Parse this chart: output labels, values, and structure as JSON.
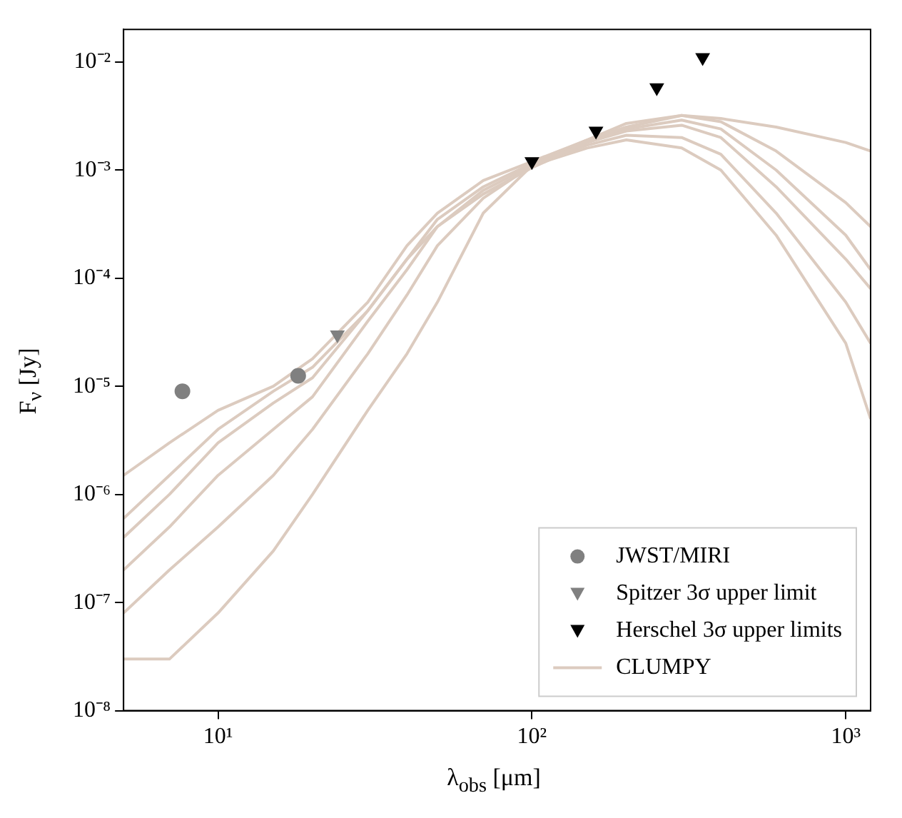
{
  "chart_data": {
    "type": "line",
    "xlabel": "λ$_{obs}$ [μm]",
    "ylabel": "F$_{ν}$ [Jy]",
    "log": "xy",
    "grid": false,
    "legend": "bottom right",
    "xlim": [
      5,
      1200
    ],
    "ylim": [
      1e-08,
      0.02
    ],
    "xticks": [
      {
        "value": 10,
        "label": "10¹"
      },
      {
        "value": 100,
        "label": "10²"
      },
      {
        "value": 1000,
        "label": "10³"
      }
    ],
    "yticks": [
      {
        "value": 1e-08,
        "label": "10⁻⁸"
      },
      {
        "value": 1e-07,
        "label": "10⁻⁷"
      },
      {
        "value": 1e-06,
        "label": "10⁻⁶"
      },
      {
        "value": 1e-05,
        "label": "10⁻⁵"
      },
      {
        "value": 0.0001,
        "label": "10⁻⁴"
      },
      {
        "value": 0.001,
        "label": "10⁻³"
      },
      {
        "value": 0.01,
        "label": "10⁻²"
      }
    ],
    "x": [
      5,
      7,
      10,
      15,
      20,
      30,
      40,
      50,
      70,
      100,
      150,
      200,
      300,
      400,
      600,
      1000,
      1200
    ],
    "series": [
      {
        "name": "JWST/MIRI",
        "type": "scatter",
        "marker": "circle",
        "color": "#808080",
        "x": [
          7.7,
          18
        ],
        "values": [
          9e-06,
          1.25e-05
        ]
      },
      {
        "name": "Spitzer 3σ upper limit",
        "type": "scatter",
        "marker": "triangle",
        "color": "#808080",
        "x": [
          24
        ],
        "values": [
          3e-05
        ]
      },
      {
        "name": "Herschel 3σ upper limits",
        "type": "scatter",
        "marker": "triangle",
        "color": "#000000",
        "x": [
          100,
          160,
          250,
          350
        ],
        "values": [
          0.0012,
          0.0023,
          0.0058,
          0.011
        ]
      },
      {
        "name": "CLUMPY",
        "type": "line",
        "color": "#dccbbf",
        "values": [
          2e-07,
          5e-07,
          1.5e-06,
          4e-06,
          8e-06,
          4e-05,
          0.00012,
          0.0003,
          0.00065,
          0.0011,
          0.0018,
          0.0023,
          0.0026,
          0.002,
          0.0007,
          0.00015,
          8e-05
        ]
      },
      {
        "type": "line",
        "color": "#dccbbf",
        "values": [
          1.5e-06,
          3e-06,
          6e-06,
          1e-05,
          1.8e-05,
          6e-05,
          0.0002,
          0.0004,
          0.0008,
          0.0012,
          0.0019,
          0.0025,
          0.0032,
          0.003,
          0.0025,
          0.0018,
          0.0015
        ]
      },
      {
        "type": "line",
        "color": "#dccbbf",
        "values": [
          3e-08,
          3e-08,
          8e-08,
          3e-07,
          1e-06,
          6e-06,
          2e-05,
          6e-05,
          0.0004,
          0.0011,
          0.0016,
          0.0019,
          0.0016,
          0.001,
          0.00025,
          2.5e-05,
          5e-06
        ]
      },
      {
        "type": "line",
        "color": "#dccbbf",
        "values": [
          6e-07,
          1.5e-06,
          4e-06,
          9e-06,
          1.5e-05,
          5e-05,
          0.00015,
          0.00035,
          0.0007,
          0.00115,
          0.0019,
          0.0027,
          0.0032,
          0.0028,
          0.0015,
          0.0005,
          0.0003
        ]
      },
      {
        "type": "line",
        "color": "#dccbbf",
        "values": [
          8e-08,
          2e-07,
          5e-07,
          1.5e-06,
          4e-06,
          2e-05,
          7e-05,
          0.0002,
          0.00055,
          0.0011,
          0.0017,
          0.0021,
          0.002,
          0.0014,
          0.0004,
          6e-05,
          2.5e-05
        ]
      },
      {
        "type": "line",
        "color": "#dccbbf",
        "values": [
          4e-07,
          1e-06,
          3e-06,
          7e-06,
          1.2e-05,
          5e-05,
          0.00015,
          0.0003,
          0.0006,
          0.00105,
          0.0018,
          0.0024,
          0.0029,
          0.0024,
          0.001,
          0.00025,
          0.00012
        ]
      }
    ]
  }
}
